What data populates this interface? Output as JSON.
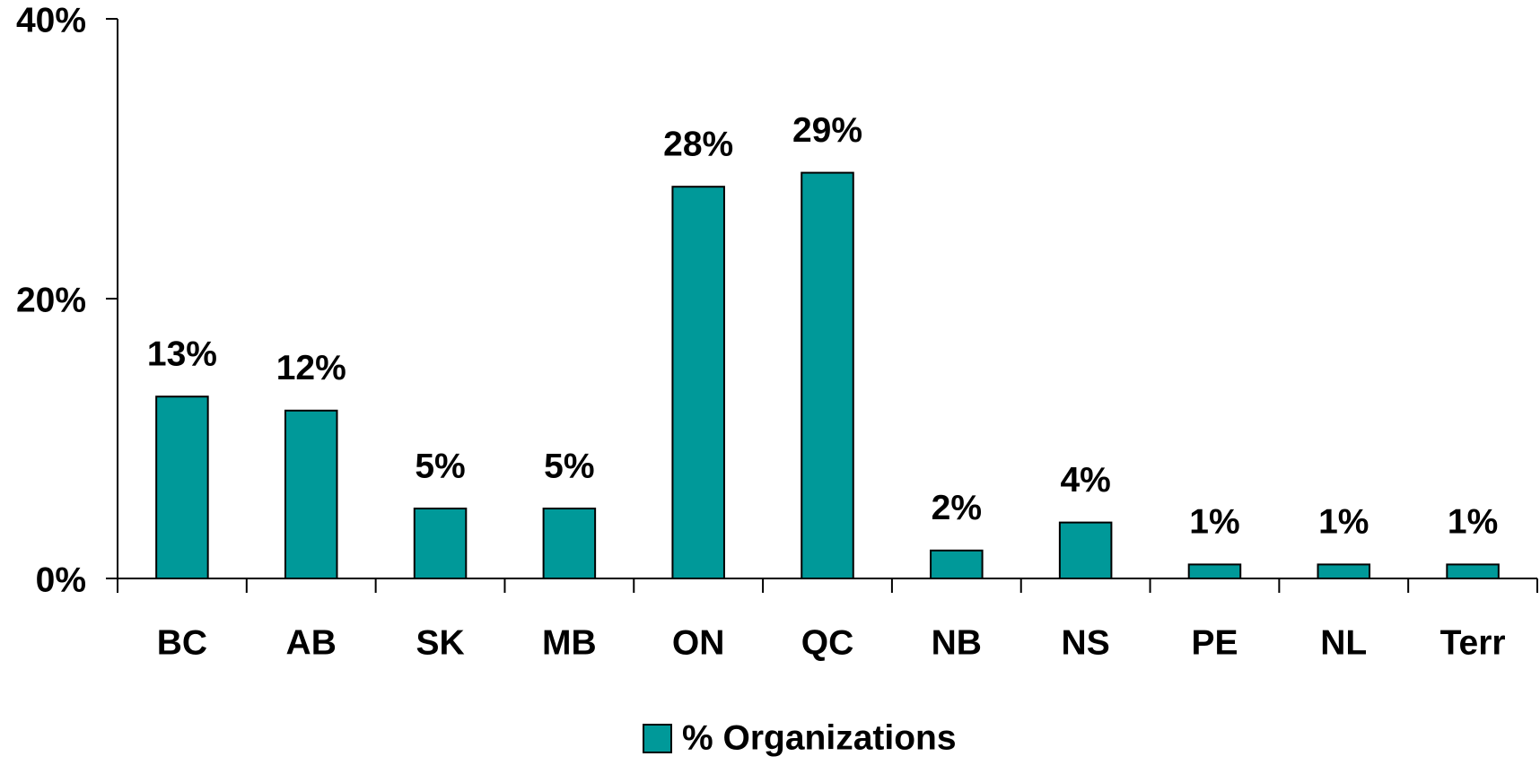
{
  "chart_data": {
    "type": "bar",
    "categories": [
      "BC",
      "AB",
      "SK",
      "MB",
      "ON",
      "QC",
      "NB",
      "NS",
      "PE",
      "NL",
      "Terr"
    ],
    "series": [
      {
        "name": "% Organizations",
        "color": "#009999",
        "values": [
          13,
          12,
          5,
          5,
          28,
          29,
          2,
          4,
          1,
          1,
          1
        ],
        "value_labels": [
          "13%",
          "12%",
          "5%",
          "5%",
          "28%",
          "29%",
          "2%",
          "4%",
          "1%",
          "1%",
          "1%"
        ]
      }
    ],
    "ylim": [
      0,
      40
    ],
    "yticks": [
      {
        "value": 0,
        "label": "0%"
      },
      {
        "value": 20,
        "label": "20%"
      },
      {
        "value": 40,
        "label": "40%"
      }
    ],
    "grid": false,
    "legend": "bottom"
  }
}
